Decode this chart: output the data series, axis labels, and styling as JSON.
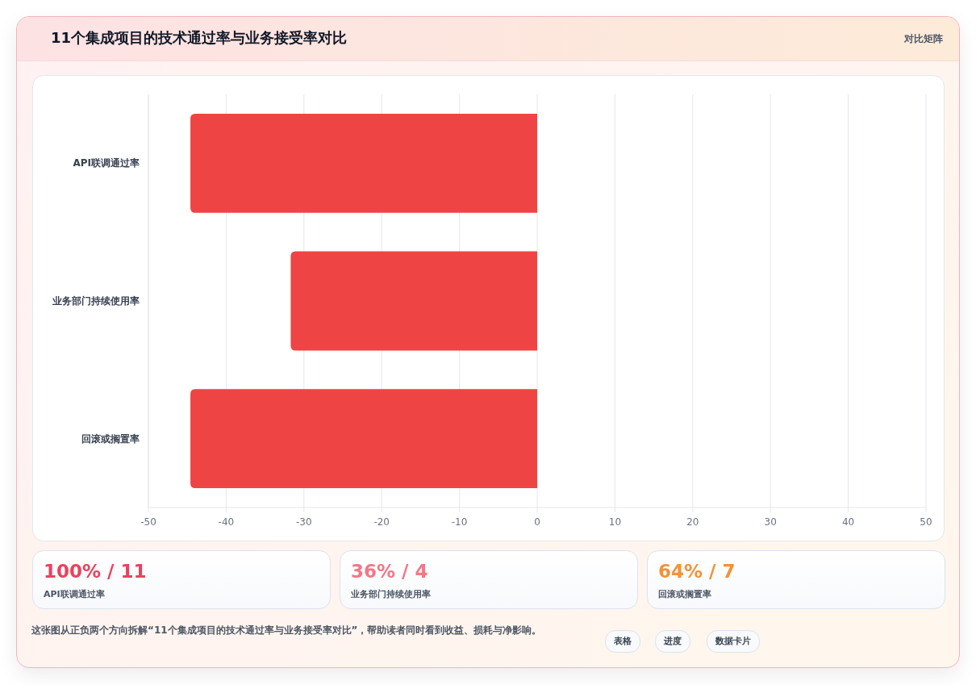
{
  "chart_data": [
    {
      "type": "bar",
      "orientation": "horizontal",
      "title": "11个集成项目的技术通过率与业务接受率对比",
      "categories": [
        "API联调通过率",
        "业务部门持续使用率",
        "回滚或搁置率"
      ],
      "series": [
        {
          "color": "#ef4444",
          "values": [
            -44.6,
            -31.7,
            -44.6
          ]
        }
      ],
      "xlim": [
        -50,
        50
      ],
      "xticks": [
        -50,
        -40,
        -30,
        -20,
        -10,
        0,
        10,
        20,
        30,
        40,
        50
      ],
      "grid": "x",
      "annotations": [
        "对比矩阵",
        "这张图从正负两个方向拆解“11个集成项目的技术通过率与业务接受率对比”，帮助读者同时看到收益、损耗与净影响。"
      ]
    },
    {
      "type": "other",
      "annotations": [
        "100% / 11",
        "API联调通过率",
        "36% / 4",
        "业务部门持续使用率",
        "64% / 7",
        "回滚或搁置率",
        "表格",
        "进度",
        "数据卡片"
      ]
    }
  ]
}
